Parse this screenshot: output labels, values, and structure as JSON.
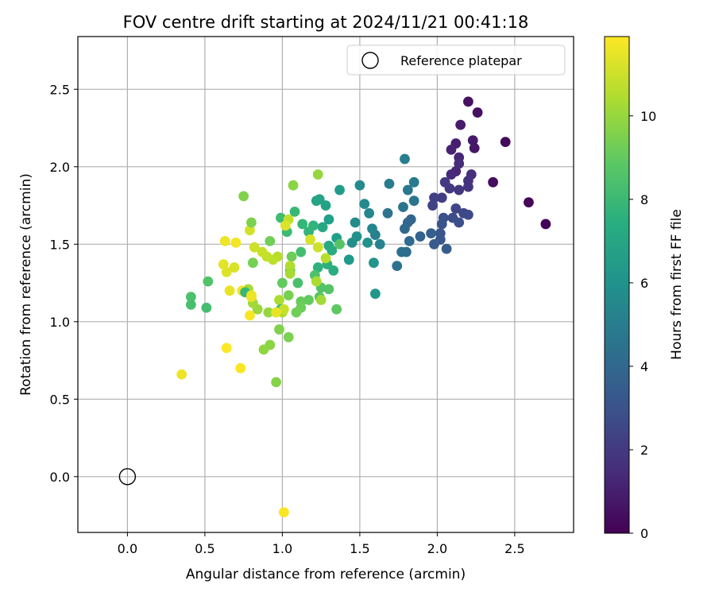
{
  "chart_data": {
    "type": "scatter",
    "title": "FOV centre drift starting at 2024/11/21 00:41:18",
    "xlabel": "Angular distance from reference (arcmin)",
    "ylabel": "Rotation from reference (arcmin)",
    "xlim": [
      -0.32,
      2.88
    ],
    "ylim": [
      -0.36,
      2.84
    ],
    "xticks": [
      0.0,
      0.5,
      1.0,
      1.5,
      2.0,
      2.5
    ],
    "yticks": [
      0.0,
      0.5,
      1.0,
      1.5,
      2.0,
      2.5
    ],
    "xtick_labels": [
      "0.0",
      "0.5",
      "1.0",
      "1.5",
      "2.0",
      "2.5"
    ],
    "ytick_labels": [
      "0.0",
      "0.5",
      "1.0",
      "1.5",
      "2.0",
      "2.5"
    ],
    "grid": true,
    "legend": {
      "placement": "top-right",
      "entries": [
        "Reference platepar"
      ]
    },
    "colorbar": {
      "label": "Hours from first FF file",
      "colormap": "viridis",
      "range": [
        0,
        11.9
      ],
      "ticks": [
        0,
        2,
        4,
        6,
        8,
        10
      ],
      "tick_labels": [
        "0",
        "2",
        "4",
        "6",
        "8",
        "10"
      ]
    },
    "reference_point": {
      "x": 0.0,
      "y": 0.0,
      "name": "Reference platepar"
    },
    "columns": [
      "x",
      "y",
      "hours"
    ],
    "points": [
      [
        2.7,
        1.63,
        0.1
      ],
      [
        2.59,
        1.77,
        0.2
      ],
      [
        2.44,
        2.16,
        0.3
      ],
      [
        2.36,
        1.9,
        0.4
      ],
      [
        2.26,
        2.35,
        0.5
      ],
      [
        2.2,
        2.42,
        0.6
      ],
      [
        2.24,
        2.12,
        0.7
      ],
      [
        2.23,
        2.17,
        0.8
      ],
      [
        2.15,
        2.27,
        0.9
      ],
      [
        2.12,
        2.15,
        1.0
      ],
      [
        2.09,
        2.11,
        1.1
      ],
      [
        2.14,
        2.06,
        1.2
      ],
      [
        2.12,
        1.97,
        1.3
      ],
      [
        2.09,
        1.95,
        1.4
      ],
      [
        2.14,
        2.02,
        1.5
      ],
      [
        2.22,
        1.95,
        1.6
      ],
      [
        2.2,
        1.91,
        1.7
      ],
      [
        2.2,
        1.87,
        1.8
      ],
      [
        2.14,
        1.85,
        1.9
      ],
      [
        2.08,
        1.86,
        2.0
      ],
      [
        2.05,
        1.9,
        2.1
      ],
      [
        2.03,
        1.8,
        2.2
      ],
      [
        1.98,
        1.8,
        2.3
      ],
      [
        1.97,
        1.75,
        2.4
      ],
      [
        2.12,
        1.73,
        2.5
      ],
      [
        2.17,
        1.7,
        2.6
      ],
      [
        2.2,
        1.69,
        2.7
      ],
      [
        2.1,
        1.67,
        2.8
      ],
      [
        2.14,
        1.64,
        2.9
      ],
      [
        2.04,
        1.67,
        3.0
      ],
      [
        2.03,
        1.63,
        3.1
      ],
      [
        2.02,
        1.57,
        3.2
      ],
      [
        2.02,
        1.53,
        3.3
      ],
      [
        1.98,
        1.5,
        3.4
      ],
      [
        2.06,
        1.47,
        3.5
      ],
      [
        1.96,
        1.57,
        3.6
      ],
      [
        1.89,
        1.55,
        3.7
      ],
      [
        1.83,
        1.66,
        3.8
      ],
      [
        1.81,
        1.64,
        3.9
      ],
      [
        1.79,
        1.6,
        4.0
      ],
      [
        1.82,
        1.52,
        4.1
      ],
      [
        1.8,
        1.45,
        4.2
      ],
      [
        1.77,
        1.45,
        4.3
      ],
      [
        1.74,
        1.36,
        4.4
      ],
      [
        1.68,
        1.7,
        4.5
      ],
      [
        1.78,
        1.74,
        4.6
      ],
      [
        1.85,
        1.78,
        4.7
      ],
      [
        1.81,
        1.85,
        4.8
      ],
      [
        1.85,
        1.9,
        4.9
      ],
      [
        1.69,
        1.89,
        5.0
      ],
      [
        1.79,
        2.05,
        5.1
      ],
      [
        1.6,
        1.56,
        5.2
      ],
      [
        1.63,
        1.5,
        5.3
      ],
      [
        1.58,
        1.6,
        5.4
      ],
      [
        1.56,
        1.7,
        5.5
      ],
      [
        1.53,
        1.76,
        5.6
      ],
      [
        1.5,
        1.88,
        5.7
      ],
      [
        1.47,
        1.64,
        5.8
      ],
      [
        1.45,
        1.51,
        5.9
      ],
      [
        1.48,
        1.55,
        6.0
      ],
      [
        1.55,
        1.51,
        6.1
      ],
      [
        1.59,
        1.38,
        6.2
      ],
      [
        1.6,
        1.18,
        6.3
      ],
      [
        1.43,
        1.4,
        6.4
      ],
      [
        1.37,
        1.85,
        6.5
      ],
      [
        1.35,
        1.54,
        6.6
      ],
      [
        1.3,
        1.66,
        6.7
      ],
      [
        1.28,
        1.75,
        6.8
      ],
      [
        1.24,
        1.79,
        6.9
      ],
      [
        1.22,
        1.78,
        7.0
      ],
      [
        1.26,
        1.61,
        7.1
      ],
      [
        1.3,
        1.49,
        7.2
      ],
      [
        1.32,
        1.46,
        7.3
      ],
      [
        1.33,
        1.33,
        7.4
      ],
      [
        1.29,
        1.37,
        7.5
      ],
      [
        1.23,
        1.35,
        7.6
      ],
      [
        1.2,
        1.62,
        7.7
      ],
      [
        1.17,
        1.58,
        7.8
      ],
      [
        1.13,
        1.63,
        7.9
      ],
      [
        1.08,
        1.71,
        8.0
      ],
      [
        1.03,
        1.58,
        8.1
      ],
      [
        0.99,
        1.67,
        8.2
      ],
      [
        1.12,
        1.45,
        8.3
      ],
      [
        1.1,
        1.25,
        8.4
      ],
      [
        1.21,
        1.3,
        8.5
      ],
      [
        1.25,
        1.22,
        8.6
      ],
      [
        1.3,
        1.21,
        8.7
      ],
      [
        1.24,
        1.16,
        8.8
      ],
      [
        1.35,
        1.08,
        8.9
      ],
      [
        1.17,
        1.14,
        9.0
      ],
      [
        1.12,
        1.13,
        9.1
      ],
      [
        1.12,
        1.09,
        9.2
      ],
      [
        1.09,
        1.06,
        9.3
      ],
      [
        1.04,
        1.17,
        9.4
      ],
      [
        1.04,
        0.9,
        9.5
      ],
      [
        0.98,
        0.95,
        9.6
      ],
      [
        0.96,
        0.61,
        9.7
      ],
      [
        0.92,
        0.85,
        9.8
      ],
      [
        0.88,
        0.82,
        9.9
      ],
      [
        0.91,
        1.06,
        10.0
      ],
      [
        0.84,
        1.08,
        10.1
      ],
      [
        0.81,
        1.12,
        10.2
      ],
      [
        0.78,
        1.21,
        10.3
      ],
      [
        0.98,
        1.14,
        10.4
      ],
      [
        1.0,
        1.06,
        10.5
      ],
      [
        0.97,
        1.42,
        10.6
      ],
      [
        0.94,
        1.4,
        10.7
      ],
      [
        0.9,
        1.42,
        10.8
      ],
      [
        0.87,
        1.45,
        10.9
      ],
      [
        0.82,
        1.48,
        11.0
      ],
      [
        0.79,
        1.59,
        11.1
      ],
      [
        0.69,
        1.35,
        11.2
      ],
      [
        0.64,
        1.32,
        11.3
      ],
      [
        0.62,
        1.37,
        11.4
      ],
      [
        0.66,
        1.2,
        11.5
      ],
      [
        0.63,
        1.52,
        11.6
      ],
      [
        0.74,
        1.2,
        11.7
      ],
      [
        0.79,
        1.04,
        11.8
      ],
      [
        0.64,
        0.83,
        11.9
      ],
      [
        1.18,
        1.53,
        11.2
      ],
      [
        1.23,
        1.48,
        11.0
      ],
      [
        1.28,
        1.41,
        10.6
      ],
      [
        1.22,
        1.26,
        10.4
      ],
      [
        1.25,
        1.14,
        10.2
      ],
      [
        1.23,
        1.95,
        10.0
      ],
      [
        1.07,
        1.88,
        9.8
      ],
      [
        0.75,
        1.81,
        9.6
      ],
      [
        0.8,
        1.64,
        9.5
      ],
      [
        0.81,
        1.38,
        9.4
      ],
      [
        0.92,
        1.52,
        9.3
      ],
      [
        1.06,
        1.42,
        9.2
      ],
      [
        1.0,
        1.25,
        9.0
      ],
      [
        1.05,
        1.33,
        8.8
      ],
      [
        1.37,
        1.5,
        8.7
      ],
      [
        0.52,
        1.26,
        8.6
      ],
      [
        0.41,
        1.16,
        8.5
      ],
      [
        0.41,
        1.11,
        8.4
      ],
      [
        0.51,
        1.09,
        8.3
      ],
      [
        0.99,
        1.08,
        8.2
      ],
      [
        0.76,
        1.19,
        8.0
      ],
      [
        1.04,
        1.66,
        10.8
      ],
      [
        1.02,
        1.62,
        11.3
      ],
      [
        1.01,
        1.08,
        10.9
      ],
      [
        0.96,
        1.06,
        11.5
      ],
      [
        0.8,
        1.17,
        11.4
      ],
      [
        0.8,
        1.16,
        11.6
      ],
      [
        0.7,
        1.51,
        11.7
      ],
      [
        0.73,
        0.7,
        11.8
      ],
      [
        0.35,
        0.66,
        11.6
      ],
      [
        1.01,
        -0.23,
        11.8
      ],
      [
        1.05,
        1.36,
        10.5
      ],
      [
        1.05,
        1.31,
        10.3
      ]
    ]
  }
}
